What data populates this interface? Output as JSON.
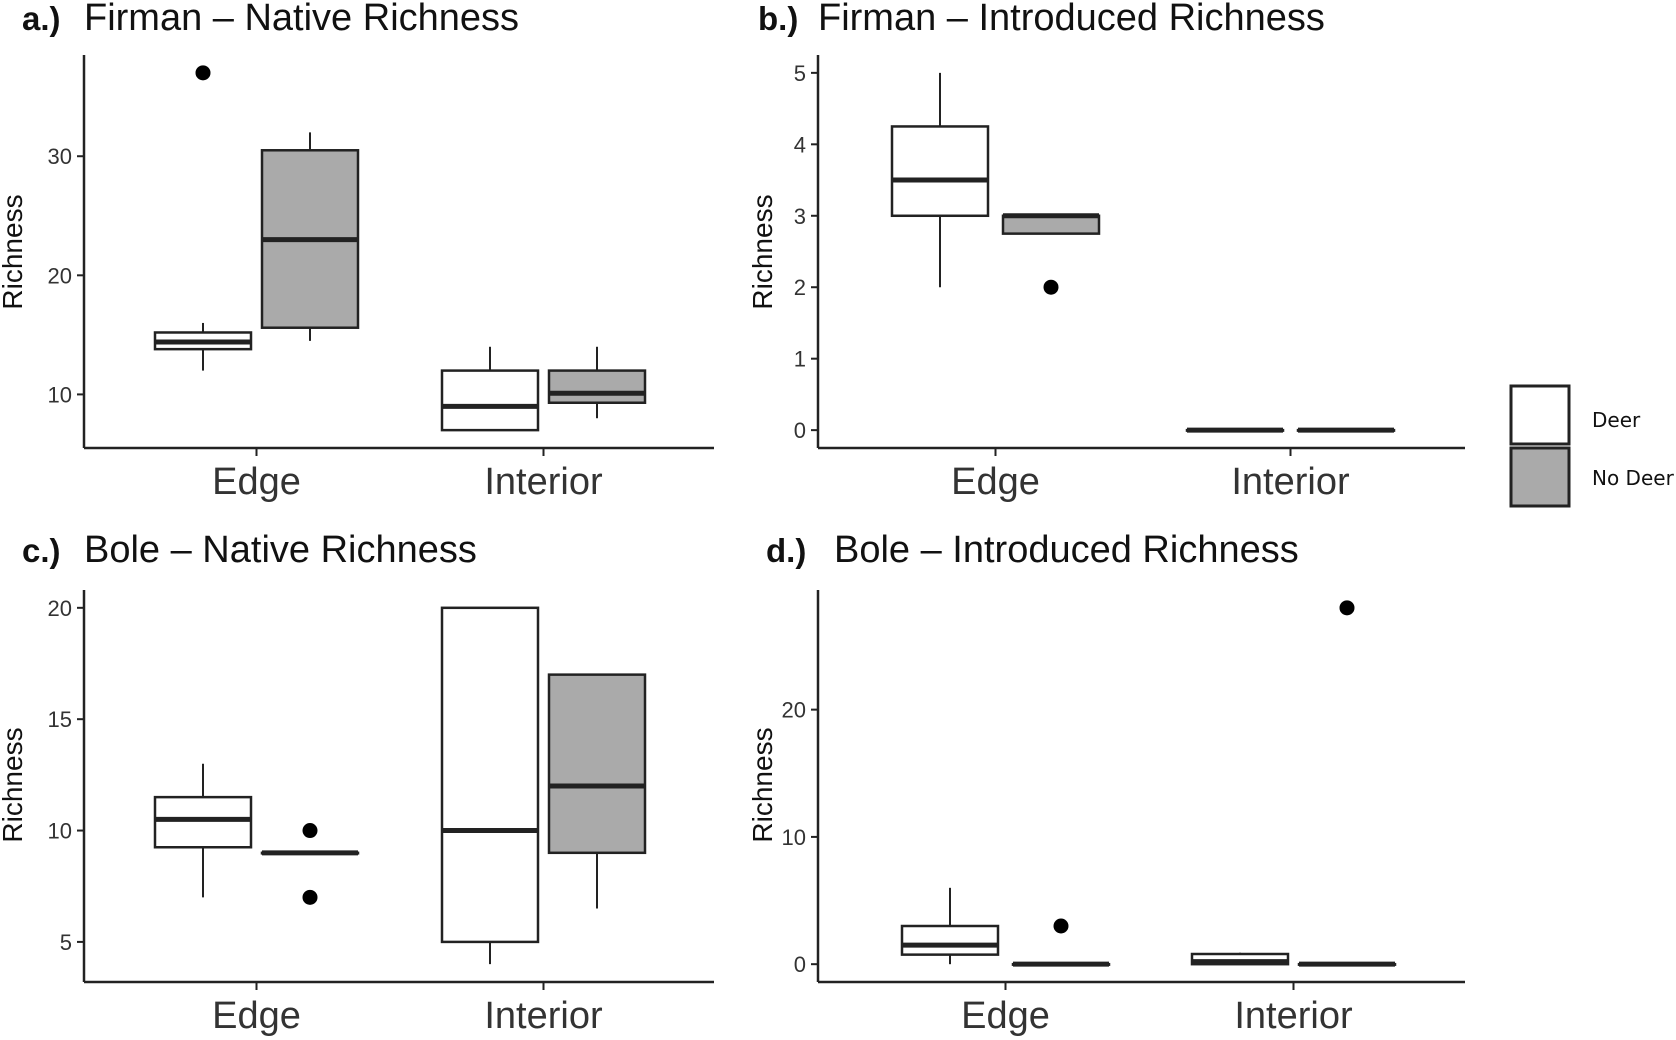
{
  "colors": {
    "Deer": "#ffffff",
    "No Deer": "#aaaaaa",
    "stroke": "#222222"
  },
  "legend": {
    "placement": "right",
    "entries": [
      {
        "label": "Deer",
        "color": "#ffffff"
      },
      {
        "label": "No Deer",
        "color": "#aaaaaa"
      }
    ]
  },
  "chart_data": [
    {
      "type": "box",
      "panel": "a.)",
      "title": "Firman – Native Richness",
      "ylabel": "Richness",
      "ylim": [
        5.5,
        38.5
      ],
      "yticks": [
        10,
        20,
        30
      ],
      "categories": [
        "Edge",
        "Interior"
      ],
      "series": [
        {
          "name": "Deer",
          "boxes": [
            {
              "min": 12,
              "q1": 13.8,
              "median": 14.4,
              "q3": 15.2,
              "max": 16,
              "outliers": [
                37
              ]
            },
            {
              "min": 7,
              "q1": 7,
              "median": 9,
              "q3": 12,
              "max": 14,
              "outliers": []
            }
          ]
        },
        {
          "name": "No Deer",
          "boxes": [
            {
              "min": 14.5,
              "q1": 15.6,
              "median": 23,
              "q3": 30.5,
              "max": 32,
              "outliers": []
            },
            {
              "min": 8,
              "q1": 9.3,
              "median": 10.1,
              "q3": 12,
              "max": 14,
              "outliers": []
            }
          ]
        }
      ]
    },
    {
      "type": "box",
      "panel": "b.)",
      "title": "Firman – Introduced Richness",
      "ylabel": "Richness",
      "ylim": [
        -0.25,
        5.25
      ],
      "yticks": [
        0,
        1,
        2,
        3,
        4,
        5
      ],
      "categories": [
        "Edge",
        "Interior"
      ],
      "series": [
        {
          "name": "Deer",
          "boxes": [
            {
              "min": 2,
              "q1": 3,
              "median": 3.5,
              "q3": 4.25,
              "max": 5,
              "outliers": []
            },
            {
              "min": 0,
              "q1": 0,
              "median": 0,
              "q3": 0,
              "max": 0,
              "outliers": []
            }
          ]
        },
        {
          "name": "No Deer",
          "boxes": [
            {
              "min": 2.75,
              "q1": 2.75,
              "median": 3,
              "q3": 3,
              "max": 3,
              "outliers": [
                2
              ]
            },
            {
              "min": 0,
              "q1": 0,
              "median": 0,
              "q3": 0,
              "max": 0,
              "outliers": []
            }
          ]
        }
      ]
    },
    {
      "type": "box",
      "panel": "c.)",
      "title": "Bole – Native Richness",
      "ylabel": "Richness",
      "ylim": [
        3.2,
        20.8
      ],
      "yticks": [
        5,
        10,
        15,
        20
      ],
      "categories": [
        "Edge",
        "Interior"
      ],
      "series": [
        {
          "name": "Deer",
          "boxes": [
            {
              "min": 7,
              "q1": 9.25,
              "median": 10.5,
              "q3": 11.5,
              "max": 13,
              "outliers": []
            },
            {
              "min": 4,
              "q1": 5,
              "median": 10,
              "q3": 20,
              "max": 20,
              "outliers": []
            }
          ]
        },
        {
          "name": "No Deer",
          "boxes": [
            {
              "min": 9,
              "q1": 9,
              "median": 9,
              "q3": 9,
              "max": 9,
              "outliers": [
                10,
                7
              ]
            },
            {
              "min": 6.5,
              "q1": 9,
              "median": 12,
              "q3": 17,
              "max": 17,
              "outliers": []
            }
          ]
        }
      ]
    },
    {
      "type": "box",
      "panel": "d.)",
      "title": "Bole – Introduced Richness",
      "ylabel": "Richness",
      "ylim": [
        -1.4,
        29.4
      ],
      "yticks": [
        0,
        10,
        20
      ],
      "categories": [
        "Edge",
        "Interior"
      ],
      "series": [
        {
          "name": "Deer",
          "boxes": [
            {
              "min": 0,
              "q1": 0.75,
              "median": 1.5,
              "q3": 3,
              "max": 6,
              "outliers": []
            },
            {
              "min": 0,
              "q1": 0,
              "median": 0.2,
              "q3": 0.8,
              "max": 0.9,
              "outliers": []
            }
          ]
        },
        {
          "name": "No Deer",
          "boxes": [
            {
              "min": 0,
              "q1": 0,
              "median": 0,
              "q3": 0,
              "max": 0,
              "outliers": [
                3
              ]
            },
            {
              "min": 0,
              "q1": 0,
              "median": 0,
              "q3": 0,
              "max": 0,
              "outliers": [
                28
              ]
            }
          ]
        }
      ]
    }
  ]
}
